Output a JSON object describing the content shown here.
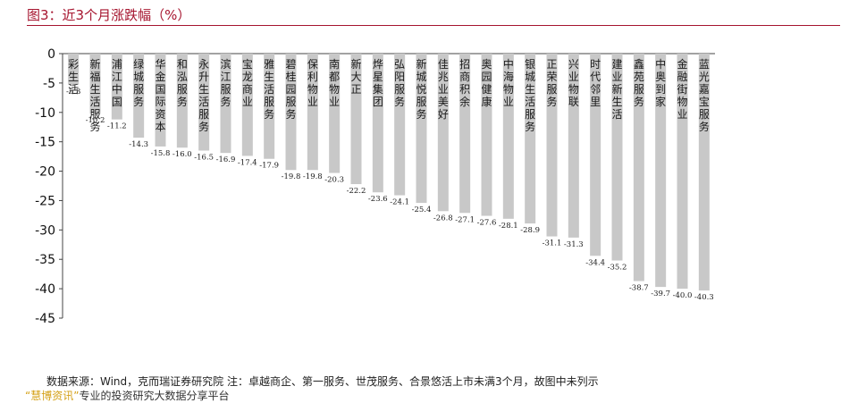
{
  "title": "图3：近3个月涨跌幅（%）",
  "source_note": "数据来源：Wind，克而瑞证券研究院   注：卓越商企、第一服务、世茂服务、合景悠活上市未满3个月，故图中未列示",
  "footer": {
    "brand": "“慧博资讯”",
    "text": "专业的投资研究大数据分享平台"
  },
  "chart_data": {
    "type": "bar",
    "title": "近3个月涨跌幅（%）",
    "xlabel": "",
    "ylabel": "",
    "ylim": [
      -45,
      0
    ],
    "yticks": [
      0,
      -5,
      -10,
      -15,
      -20,
      -25,
      -30,
      -35,
      -40,
      -45
    ],
    "grid": false,
    "bar_color": "#c8c8c8",
    "categories": [
      "彩生活",
      "新福生活服务",
      "浦江中国",
      "绿城服务",
      "华金国际资本",
      "和泓服务",
      "永升生活服务",
      "滨江服务",
      "宝龙商业",
      "雅生活服务",
      "碧桂园服务",
      "保利物业",
      "南都物业",
      "新大正",
      "烨星集团",
      "弘阳服务",
      "新城悦服务",
      "佳兆业美好",
      "招商积余",
      "奥园健康",
      "中海物业",
      "银城生活服务",
      "正荣服务",
      "兴业物联",
      "时代邻里",
      "建业新生活",
      "鑫苑服务",
      "中奥到家",
      "金融街物业",
      "蓝光嘉宝服务"
    ],
    "values": [
      -5.3,
      -10.2,
      -11.2,
      -14.3,
      -15.8,
      -16.0,
      -16.5,
      -16.9,
      -17.4,
      -17.9,
      -19.8,
      -19.8,
      -20.3,
      -22.2,
      -23.6,
      -24.1,
      -25.4,
      -26.8,
      -27.1,
      -27.6,
      -28.1,
      -28.9,
      -31.1,
      -31.3,
      -34.4,
      -35.2,
      -38.7,
      -39.7,
      -40.0,
      -40.3
    ],
    "data_labels": [
      "-5.3",
      "-10.2",
      "-11.2",
      "-14.3",
      "-15.8",
      "-16.0",
      "-16.5",
      "-16.9",
      "-17.4",
      "-17.9",
      "-19.8",
      "-19.8",
      "-20.3",
      "-22.2",
      "-23.6",
      "-24.1",
      "-25.4",
      "-26.8",
      "-27.1",
      "-27.6",
      "-28.1",
      "-28.9",
      "-31.1",
      "-31.3",
      "-34.4",
      "-35.2",
      "-38.7",
      "-39.7",
      "-40.0",
      "-40.3"
    ]
  }
}
